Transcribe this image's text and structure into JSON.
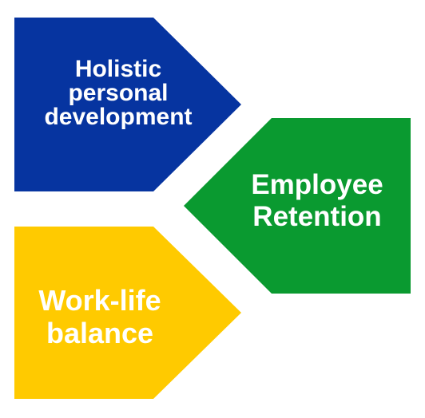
{
  "colors": {
    "top_arrow": "#0634a0",
    "right_arrow": "#0a9a30",
    "bottom_arrow": "#ffca00",
    "text": "#ffffff",
    "background": "#ffffff"
  },
  "arrows": {
    "top": {
      "lines": [
        "Holistic",
        "personal",
        "development"
      ]
    },
    "right": {
      "lines": [
        "Employee",
        "Retention"
      ]
    },
    "bottom": {
      "lines": [
        "Work-life",
        "balance"
      ]
    }
  }
}
